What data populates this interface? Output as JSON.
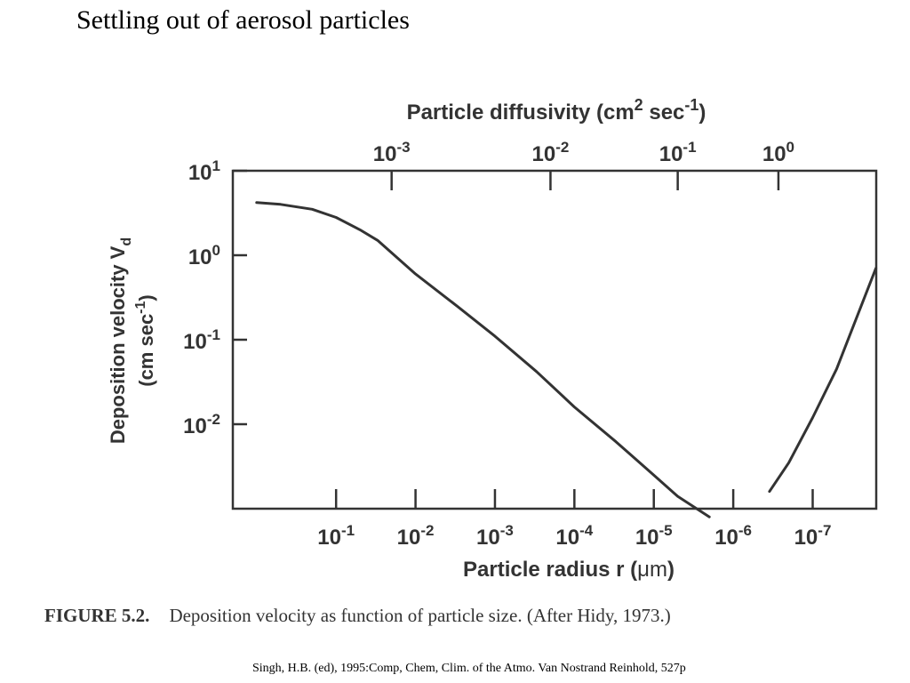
{
  "slide": {
    "title": "Settling out of aerosol particles",
    "citation": "Singh, H.B. (ed), 1995:Comp, Chem, Clim. of the Atmo. Van Nostrand Reinhold, 527p"
  },
  "figure": {
    "label": "FIGURE 5.2.",
    "caption": "Deposition velocity as function of particle size. (After Hidy, 1973.)"
  },
  "chart_data": {
    "type": "line",
    "title": "",
    "ylabel": "Deposition velocity Vd (cm sec-1)",
    "ylabel_parts": {
      "line1_base": "Deposition velocity V",
      "line1_sub": "d",
      "line2_base": "(cm sec",
      "line2_sup": "-1",
      "line2_end": ")"
    },
    "xlabel": "Particle radius r (μm)",
    "xlabel_parts": {
      "base": "Particle radius r (",
      "unit": "μm",
      "end": ")"
    },
    "top_xlabel": "Particle diffusivity (cm2 sec-1)",
    "top_xlabel_parts": {
      "base": "Particle diffusivity (cm",
      "sup1": "2",
      "mid": " sec",
      "sup2": "-1",
      "end": ")"
    },
    "y_scale": "log",
    "ylim": [
      0.001,
      10
    ],
    "yticks": [
      {
        "value": 10,
        "base": "10",
        "exp": "1"
      },
      {
        "value": 1,
        "base": "10",
        "exp": "0"
      },
      {
        "value": 0.1,
        "base": "10",
        "exp": "-1"
      },
      {
        "value": 0.01,
        "base": "10",
        "exp": "-2"
      }
    ],
    "x_scale": "log",
    "x_direction": "decreasing",
    "xlim_log10": [
      0.3,
      -7.8
    ],
    "xticks": [
      {
        "value": 0.1,
        "base": "10",
        "exp": "-1"
      },
      {
        "value": 0.01,
        "base": "10",
        "exp": "-2"
      },
      {
        "value": 0.001,
        "base": "10",
        "exp": "-3"
      },
      {
        "value": 0.0001,
        "base": "10",
        "exp": "-4"
      },
      {
        "value": 1e-05,
        "base": "10",
        "exp": "-5"
      },
      {
        "value": 1e-06,
        "base": "10",
        "exp": "-6"
      },
      {
        "value": 1e-07,
        "base": "10",
        "exp": "-7"
      }
    ],
    "top_xticks": [
      {
        "radius": 0.02,
        "value": 0.001,
        "base": "10",
        "exp": "-3"
      },
      {
        "radius": 0.0002,
        "value": 0.01,
        "base": "10",
        "exp": "-2"
      },
      {
        "radius": 5e-06,
        "value": 0.1,
        "base": "10",
        "exp": "-1"
      },
      {
        "radius": 2.7e-07,
        "value": 1,
        "base": "10",
        "exp": "0"
      }
    ],
    "grid": false,
    "series": [
      {
        "x": [
          1.0,
          0.5,
          0.2,
          0.1,
          0.05,
          0.03,
          0.01,
          0.003,
          0.001,
          0.0003,
          0.0001,
          3e-05,
          1e-05,
          5e-06,
          2e-06
        ],
        "y": [
          4.2,
          4.0,
          3.5,
          2.8,
          2.0,
          1.5,
          0.6,
          0.25,
          0.11,
          0.042,
          0.016,
          0.0062,
          0.0025,
          0.0014,
          0.0008
        ]
      },
      {
        "x": [
          3.5e-07,
          2e-07,
          1e-07,
          5e-08,
          1.6e-08
        ],
        "y": [
          0.0016,
          0.0035,
          0.012,
          0.045,
          0.7
        ]
      }
    ]
  }
}
